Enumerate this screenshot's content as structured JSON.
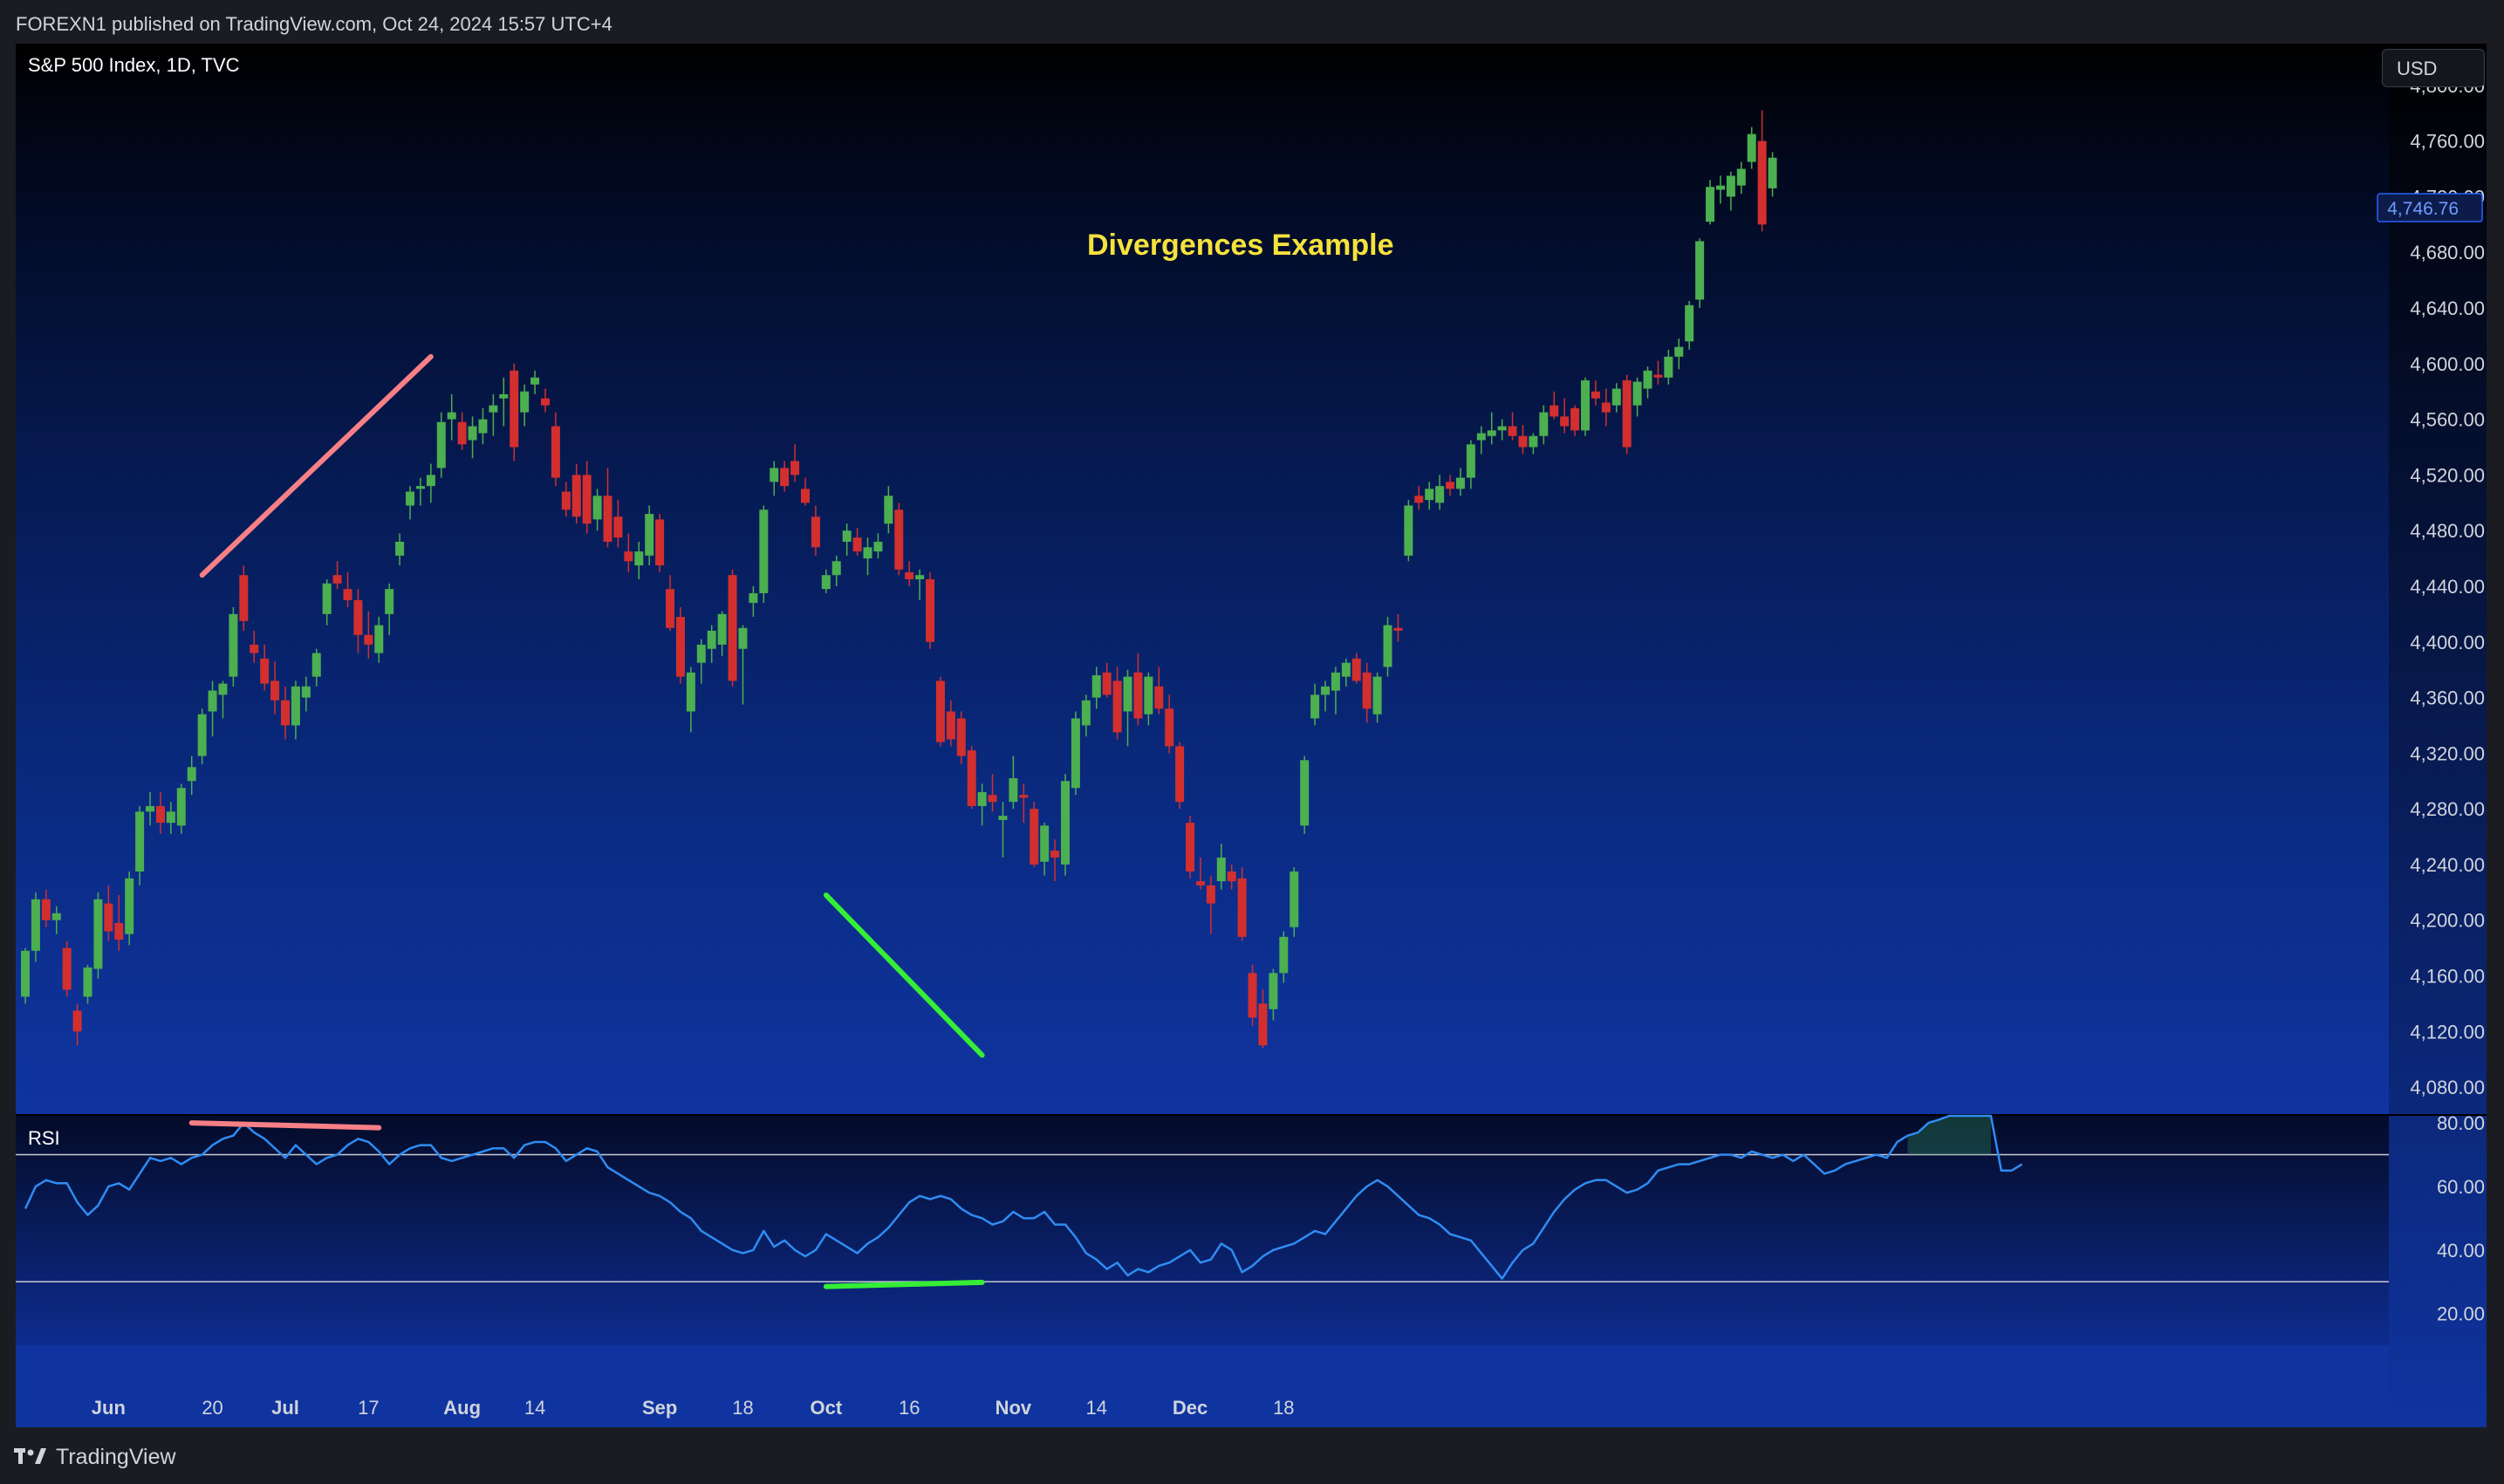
{
  "header": {
    "published": "FOREXN1 published on TradingView.com, Oct 24, 2024 15:57 UTC+4"
  },
  "chart": {
    "symbol": "S&P 500 Index, 1D, TVC",
    "currency": "USD",
    "title": "Divergences Example",
    "last_price": "4,746.76",
    "indicator": "RSI"
  },
  "footer": {
    "brand": "TradingView"
  },
  "colors": {
    "bull": "#4caf50",
    "bear": "#d32f2f",
    "rsi_line": "#2f8cf2",
    "bearish_div": "#f77f86",
    "bullish_div": "#35ee35",
    "title": "#f5e23d",
    "price_tag": "#2962ff"
  },
  "chart_data": [
    {
      "type": "candlestick",
      "title": "Divergences Example",
      "series_name": "S&P 500 Index, 1D, TVC",
      "x_ticks": [
        "Jun",
        "20",
        "Jul",
        "17",
        "Aug",
        "14",
        "Sep",
        "18",
        "Oct",
        "16",
        "Nov",
        "14",
        "Dec",
        "18"
      ],
      "y_ticks": [
        "4,080.00",
        "4,120.00",
        "4,160.00",
        "4,200.00",
        "4,240.00",
        "4,280.00",
        "4,320.00",
        "4,360.00",
        "4,400.00",
        "4,440.00",
        "4,480.00",
        "4,520.00",
        "4,560.00",
        "4,600.00",
        "4,640.00",
        "4,680.00",
        "4,720.00",
        "4,760.00",
        "4,800.00"
      ],
      "ylim": [
        4060,
        4830
      ],
      "last_price": 4746.76,
      "ohlc": [
        [
          4145,
          4180,
          4140,
          4178
        ],
        [
          4178,
          4220,
          4170,
          4215
        ],
        [
          4215,
          4222,
          4195,
          4200
        ],
        [
          4200,
          4210,
          4190,
          4205
        ],
        [
          4180,
          4185,
          4145,
          4150
        ],
        [
          4135,
          4140,
          4110,
          4120
        ],
        [
          4145,
          4168,
          4140,
          4166
        ],
        [
          4165,
          4220,
          4158,
          4215
        ],
        [
          4212,
          4225,
          4185,
          4192
        ],
        [
          4198,
          4218,
          4178,
          4186
        ],
        [
          4190,
          4235,
          4182,
          4230
        ],
        [
          4235,
          4282,
          4225,
          4278
        ],
        [
          4278,
          4292,
          4268,
          4282
        ],
        [
          4282,
          4292,
          4262,
          4270
        ],
        [
          4270,
          4285,
          4262,
          4278
        ],
        [
          4268,
          4298,
          4262,
          4295
        ],
        [
          4300,
          4318,
          4290,
          4310
        ],
        [
          4318,
          4352,
          4312,
          4348
        ],
        [
          4350,
          4372,
          4332,
          4365
        ],
        [
          4362,
          4372,
          4345,
          4370
        ],
        [
          4375,
          4425,
          4368,
          4420
        ],
        [
          4448,
          4455,
          4408,
          4415
        ],
        [
          4398,
          4408,
          4385,
          4392
        ],
        [
          4388,
          4398,
          4365,
          4370
        ],
        [
          4372,
          4386,
          4348,
          4358
        ],
        [
          4358,
          4368,
          4330,
          4340
        ],
        [
          4340,
          4372,
          4330,
          4368
        ],
        [
          4360,
          4375,
          4350,
          4368
        ],
        [
          4375,
          4395,
          4368,
          4392
        ],
        [
          4420,
          4445,
          4412,
          4442
        ],
        [
          4448,
          4458,
          4438,
          4442
        ],
        [
          4438,
          4450,
          4425,
          4430
        ],
        [
          4430,
          4438,
          4392,
          4405
        ],
        [
          4405,
          4422,
          4388,
          4398
        ],
        [
          4392,
          4418,
          4385,
          4412
        ],
        [
          4420,
          4442,
          4405,
          4438
        ],
        [
          4462,
          4478,
          4455,
          4472
        ],
        [
          4498,
          4512,
          4488,
          4508
        ],
        [
          4510,
          4518,
          4498,
          4512
        ],
        [
          4512,
          4528,
          4500,
          4520
        ],
        [
          4525,
          4565,
          4518,
          4558
        ],
        [
          4560,
          4578,
          4545,
          4565
        ],
        [
          4558,
          4565,
          4538,
          4542
        ],
        [
          4545,
          4562,
          4532,
          4555
        ],
        [
          4550,
          4568,
          4542,
          4560
        ],
        [
          4565,
          4578,
          4548,
          4570
        ],
        [
          4575,
          4590,
          4555,
          4578
        ],
        [
          4595,
          4600,
          4530,
          4540
        ],
        [
          4565,
          4585,
          4555,
          4580
        ],
        [
          4585,
          4595,
          4578,
          4590
        ],
        [
          4575,
          4582,
          4565,
          4570
        ],
        [
          4555,
          4565,
          4512,
          4518
        ],
        [
          4508,
          4515,
          4490,
          4495
        ],
        [
          4520,
          4528,
          4485,
          4490
        ],
        [
          4520,
          4530,
          4478,
          4485
        ],
        [
          4488,
          4510,
          4480,
          4505
        ],
        [
          4505,
          4525,
          4468,
          4472
        ],
        [
          4490,
          4502,
          4468,
          4475
        ],
        [
          4465,
          4478,
          4450,
          4458
        ],
        [
          4455,
          4472,
          4445,
          4465
        ],
        [
          4462,
          4498,
          4455,
          4492
        ],
        [
          4488,
          4492,
          4450,
          4455
        ],
        [
          4438,
          4448,
          4408,
          4410
        ],
        [
          4418,
          4425,
          4370,
          4375
        ],
        [
          4350,
          4382,
          4335,
          4378
        ],
        [
          4385,
          4402,
          4370,
          4398
        ],
        [
          4395,
          4412,
          4385,
          4408
        ],
        [
          4398,
          4422,
          4390,
          4420
        ],
        [
          4448,
          4452,
          4368,
          4372
        ],
        [
          4395,
          4412,
          4355,
          4410
        ],
        [
          4428,
          4440,
          4418,
          4435
        ],
        [
          4435,
          4498,
          4428,
          4495
        ],
        [
          4515,
          4530,
          4505,
          4525
        ],
        [
          4525,
          4530,
          4508,
          4512
        ],
        [
          4530,
          4542,
          4515,
          4520
        ],
        [
          4510,
          4518,
          4498,
          4500
        ],
        [
          4490,
          4498,
          4462,
          4468
        ],
        [
          4438,
          4452,
          4435,
          4448
        ],
        [
          4448,
          4462,
          4440,
          4458
        ],
        [
          4472,
          4485,
          4462,
          4480
        ],
        [
          4475,
          4482,
          4462,
          4465
        ],
        [
          4460,
          4475,
          4448,
          4468
        ],
        [
          4465,
          4478,
          4460,
          4472
        ],
        [
          4485,
          4512,
          4478,
          4505
        ],
        [
          4495,
          4500,
          4448,
          4452
        ],
        [
          4450,
          4458,
          4440,
          4445
        ],
        [
          4445,
          4452,
          4430,
          4448
        ],
        [
          4445,
          4450,
          4395,
          4400
        ],
        [
          4372,
          4375,
          4325,
          4328
        ],
        [
          4350,
          4358,
          4325,
          4330
        ],
        [
          4345,
          4350,
          4312,
          4318
        ],
        [
          4322,
          4325,
          4280,
          4282
        ],
        [
          4282,
          4298,
          4268,
          4292
        ],
        [
          4290,
          4305,
          4278,
          4285
        ],
        [
          4272,
          4285,
          4245,
          4275
        ],
        [
          4285,
          4318,
          4280,
          4302
        ],
        [
          4290,
          4298,
          4270,
          4288
        ],
        [
          4280,
          4285,
          4238,
          4240
        ],
        [
          4242,
          4270,
          4232,
          4268
        ],
        [
          4250,
          4258,
          4228,
          4245
        ],
        [
          4240,
          4305,
          4232,
          4300
        ],
        [
          4295,
          4350,
          4290,
          4345
        ],
        [
          4340,
          4362,
          4332,
          4358
        ],
        [
          4360,
          4382,
          4352,
          4376
        ],
        [
          4378,
          4385,
          4360,
          4362
        ],
        [
          4372,
          4382,
          4330,
          4335
        ],
        [
          4350,
          4380,
          4325,
          4375
        ],
        [
          4378,
          4392,
          4340,
          4345
        ],
        [
          4348,
          4378,
          4340,
          4375
        ],
        [
          4368,
          4382,
          4348,
          4352
        ],
        [
          4352,
          4362,
          4320,
          4325
        ],
        [
          4325,
          4328,
          4280,
          4285
        ],
        [
          4270,
          4275,
          4230,
          4235
        ],
        [
          4228,
          4245,
          4222,
          4225
        ],
        [
          4225,
          4232,
          4190,
          4212
        ],
        [
          4228,
          4255,
          4222,
          4245
        ],
        [
          4235,
          4240,
          4222,
          4228
        ],
        [
          4230,
          4238,
          4185,
          4188
        ],
        [
          4162,
          4168,
          4124,
          4130
        ],
        [
          4140,
          4150,
          4108,
          4110
        ],
        [
          4136,
          4165,
          4128,
          4162
        ],
        [
          4162,
          4192,
          4155,
          4188
        ],
        [
          4195,
          4238,
          4188,
          4235
        ],
        [
          4268,
          4318,
          4262,
          4315
        ],
        [
          4345,
          4370,
          4340,
          4362
        ],
        [
          4362,
          4372,
          4350,
          4368
        ],
        [
          4365,
          4382,
          4348,
          4378
        ],
        [
          4375,
          4388,
          4368,
          4385
        ],
        [
          4388,
          4392,
          4370,
          4372
        ],
        [
          4378,
          4385,
          4342,
          4352
        ],
        [
          4348,
          4378,
          4342,
          4375
        ],
        [
          4382,
          4418,
          4375,
          4412
        ],
        [
          4410,
          4420,
          4400,
          4408
        ],
        [
          4462,
          4502,
          4458,
          4498
        ],
        [
          4505,
          4512,
          4495,
          4500
        ],
        [
          4502,
          4515,
          4495,
          4510
        ],
        [
          4500,
          4520,
          4495,
          4512
        ],
        [
          4515,
          4520,
          4505,
          4510
        ],
        [
          4510,
          4525,
          4505,
          4518
        ],
        [
          4518,
          4545,
          4510,
          4542
        ],
        [
          4545,
          4555,
          4535,
          4550
        ],
        [
          4548,
          4565,
          4542,
          4552
        ],
        [
          4552,
          4560,
          4545,
          4555
        ],
        [
          4555,
          4565,
          4545,
          4548
        ],
        [
          4548,
          4556,
          4535,
          4540
        ],
        [
          4540,
          4550,
          4535,
          4548
        ],
        [
          4548,
          4570,
          4542,
          4565
        ],
        [
          4570,
          4580,
          4560,
          4562
        ],
        [
          4562,
          4575,
          4550,
          4555
        ],
        [
          4568,
          4570,
          4548,
          4552
        ],
        [
          4552,
          4590,
          4548,
          4588
        ],
        [
          4580,
          4588,
          4570,
          4575
        ],
        [
          4572,
          4582,
          4555,
          4565
        ],
        [
          4570,
          4586,
          4565,
          4582
        ],
        [
          4588,
          4592,
          4535,
          4540
        ],
        [
          4570,
          4590,
          4562,
          4587
        ],
        [
          4582,
          4598,
          4575,
          4595
        ],
        [
          4592,
          4602,
          4585,
          4590
        ],
        [
          4590,
          4610,
          4585,
          4605
        ],
        [
          4605,
          4618,
          4596,
          4612
        ],
        [
          4616,
          4645,
          4610,
          4642
        ],
        [
          4646,
          4690,
          4640,
          4688
        ],
        [
          4702,
          4732,
          4700,
          4727
        ],
        [
          4725,
          4735,
          4715,
          4728
        ],
        [
          4720,
          4738,
          4710,
          4735
        ],
        [
          4728,
          4745,
          4722,
          4740
        ],
        [
          4745,
          4770,
          4740,
          4765
        ],
        [
          4760,
          4782,
          4695,
          4700
        ],
        [
          4726,
          4752,
          4720,
          4748
        ]
      ]
    },
    {
      "type": "line",
      "title": "RSI",
      "y_ticks": [
        "20.00",
        "40.00",
        "60.00",
        "80.00"
      ],
      "ylim": [
        10,
        82.5
      ],
      "levels": [
        70,
        30
      ],
      "series": [
        {
          "values": [
            53,
            60,
            62,
            61,
            61,
            55,
            51,
            54,
            60,
            61,
            59,
            64,
            69,
            68,
            69,
            67,
            69,
            70,
            73,
            75,
            76,
            80,
            77,
            75,
            72,
            69,
            73,
            70,
            67,
            69,
            70,
            73,
            75,
            74,
            71,
            67,
            70,
            72,
            73,
            73,
            69,
            68,
            69,
            70,
            71,
            72,
            72,
            69,
            73,
            74,
            74,
            72,
            68,
            70,
            72,
            71,
            66,
            64,
            62,
            60,
            58,
            57,
            55,
            52,
            50,
            46,
            44,
            42,
            40,
            39,
            40,
            46,
            41,
            43,
            40,
            38,
            40,
            45,
            43,
            41,
            39,
            42,
            44,
            47,
            51,
            55,
            57,
            56,
            57,
            56,
            53,
            51,
            50,
            48,
            49,
            52,
            50,
            50,
            52,
            48,
            48,
            44,
            39,
            37,
            34,
            36,
            32,
            34,
            33,
            35,
            36,
            38,
            40,
            36,
            37,
            42,
            40,
            33,
            35,
            38,
            40,
            41,
            42,
            44,
            46,
            45,
            49,
            53,
            57,
            60,
            62,
            60,
            57,
            54,
            51,
            50,
            48,
            45,
            44,
            43,
            39,
            35,
            31,
            36,
            40,
            42,
            47,
            52,
            56,
            59,
            61,
            62,
            62,
            60,
            58,
            59,
            61,
            65,
            66,
            67,
            67,
            68,
            69,
            70,
            70,
            69,
            71,
            70,
            69,
            70,
            68,
            70,
            67,
            64,
            65,
            67,
            68,
            69,
            70,
            69,
            74,
            76,
            77,
            80,
            81,
            84,
            84,
            85,
            84,
            88,
            65,
            65,
            67
          ]
        }
      ]
    }
  ]
}
